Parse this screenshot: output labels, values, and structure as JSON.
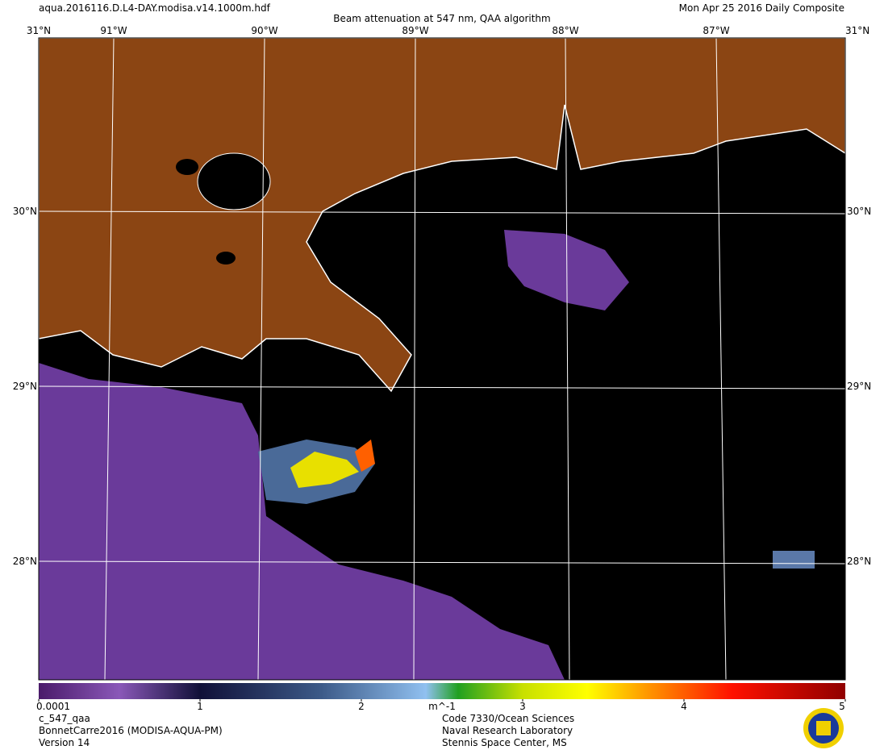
{
  "header": {
    "file": "aqua.2016116.D.L4-DAY.modisa.v14.1000m.hdf",
    "title": "Beam attenuation at 547 nm, QAA algorithm",
    "date": "Mon Apr 25 2016 Daily Composite"
  },
  "map": {
    "corner_lat": "31°N",
    "longitudes": [
      "91°W",
      "90°W",
      "89°W",
      "88°W",
      "87°W"
    ],
    "latitudes": [
      "30°N",
      "29°N",
      "28°N"
    ]
  },
  "colorbar": {
    "ticks": [
      0.0001,
      1,
      2,
      3,
      4,
      5
    ],
    "unit": "m^-1",
    "range": [
      0,
      5
    ]
  },
  "footer": {
    "left": [
      "c_547_qaa",
      "BonnetCarre2016 (MODISA-AQUA-PM)",
      "Version 14"
    ],
    "center": [
      "Code 7330/Ocean Sciences",
      "Naval Research Laboratory",
      "Stennis Space Center, MS"
    ]
  }
}
